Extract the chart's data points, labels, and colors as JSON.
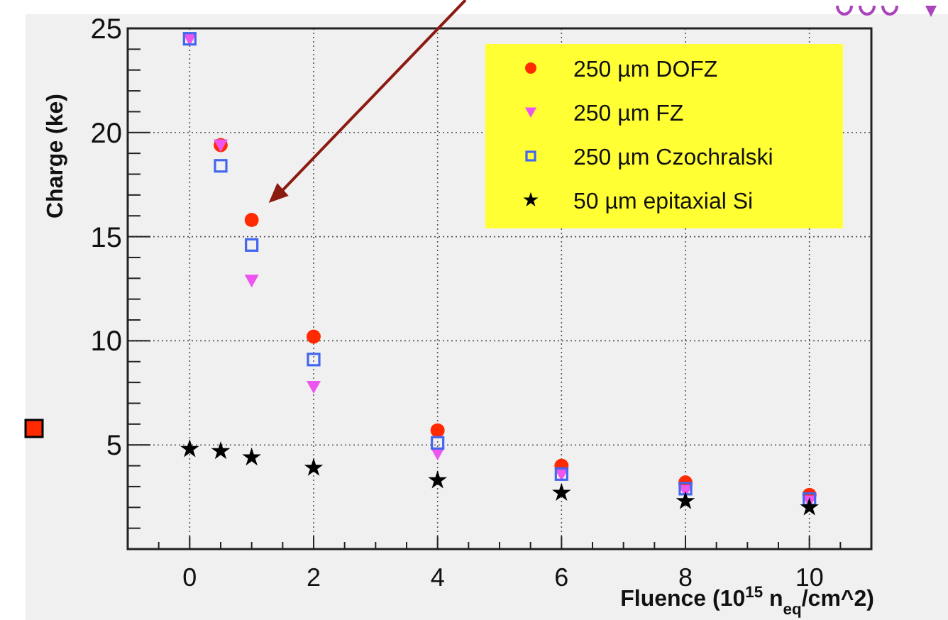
{
  "chart_data": {
    "type": "scatter",
    "xlabel": "Fluence (10$^{15}$ n$_{eq}$/cm^2)",
    "ylabel": "Charge (ke)",
    "xlim": [
      -1,
      11
    ],
    "ylim": [
      0,
      25
    ],
    "xticks": [
      0,
      2,
      4,
      6,
      8,
      10,
      {
        "value": -0.5,
        "label": null
      },
      {
        "value": 0.5,
        "label": null
      },
      {
        "value": 1,
        "label": null
      },
      {
        "value": 1.5,
        "label": null
      },
      {
        "value": 2.5,
        "label": null
      },
      {
        "value": 3,
        "label": null
      },
      {
        "value": 3.5,
        "label": null
      },
      {
        "value": 4.5,
        "label": null
      },
      {
        "value": 5,
        "label": null
      },
      {
        "value": 5.5,
        "label": null
      },
      {
        "value": 6.5,
        "label": null
      },
      {
        "value": 7,
        "label": null
      },
      {
        "value": 7.5,
        "label": null
      },
      {
        "value": 8.5,
        "label": null
      },
      {
        "value": 9,
        "label": null
      },
      {
        "value": 9.5,
        "label": null
      },
      {
        "value": 10.5,
        "label": null
      }
    ],
    "yticks": [
      5,
      10,
      15,
      20,
      25,
      {
        "value": 1,
        "label": null
      },
      {
        "value": 2,
        "label": null
      },
      {
        "value": 3,
        "label": null
      },
      {
        "value": 4,
        "label": null
      },
      {
        "value": 6,
        "label": null
      },
      {
        "value": 7,
        "label": null
      },
      {
        "value": 8,
        "label": null
      },
      {
        "value": 9,
        "label": null
      },
      {
        "value": 11,
        "label": null
      },
      {
        "value": 12,
        "label": null
      },
      {
        "value": 13,
        "label": null
      },
      {
        "value": 14,
        "label": null
      },
      {
        "value": 16,
        "label": null
      },
      {
        "value": 17,
        "label": null
      },
      {
        "value": 18,
        "label": null
      },
      {
        "value": 19,
        "label": null
      },
      {
        "value": 21,
        "label": null
      },
      {
        "value": 22,
        "label": null
      },
      {
        "value": 23,
        "label": null
      },
      {
        "value": 24,
        "label": null
      }
    ],
    "x": [
      0,
      0.5,
      1,
      2,
      4,
      6,
      8,
      10
    ],
    "grid": true,
    "legend": "top right",
    "series": [
      {
        "name": "250 µm DOFZ",
        "color": "#ff2a00",
        "marker": "circle",
        "values": [
          null,
          19.4,
          15.8,
          10.2,
          5.7,
          4.0,
          3.2,
          2.6
        ]
      },
      {
        "name": "250 µm FZ",
        "color": "#ee55ee",
        "marker": "triangle",
        "values": [
          24.5,
          19.4,
          12.9,
          7.8,
          4.6,
          3.6,
          2.8,
          2.3
        ]
      },
      {
        "name": "250 µm Czochralski",
        "color": "#4466ee",
        "marker": "square",
        "values": [
          24.5,
          18.4,
          14.6,
          9.1,
          5.1,
          3.6,
          2.9,
          2.4
        ]
      },
      {
        "name": "50 µm epitaxial Si",
        "color": "#000000",
        "marker": "star",
        "values": [
          4.8,
          4.7,
          4.4,
          3.9,
          3.3,
          2.7,
          2.3,
          2.0
        ]
      }
    ]
  }
}
